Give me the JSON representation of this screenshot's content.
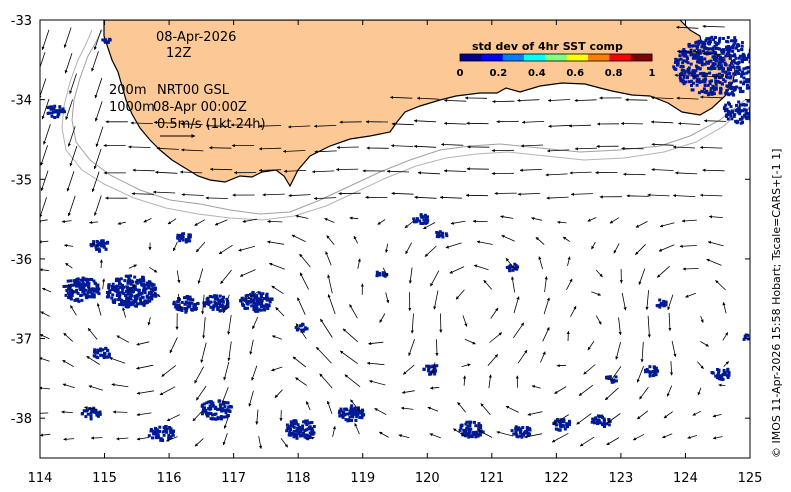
{
  "map": {
    "lon_range": [
      114,
      125
    ],
    "lat_range": [
      -38.5,
      -33
    ],
    "x_ticks": [
      "114",
      "115",
      "116",
      "117",
      "118",
      "119",
      "120",
      "121",
      "122",
      "123",
      "124",
      "125"
    ],
    "y_ticks": [
      "-33",
      "-34",
      "-35",
      "-36",
      "-37",
      "-38"
    ],
    "land_color": "#fcc896",
    "coast_color": "#000000",
    "contour_color": "#a0a0a0",
    "sst_cell_color": "#001a96"
  },
  "annotations": {
    "date": "08-Apr-2026",
    "time": "12Z",
    "depth_200": "200m",
    "depth_1000": "1000m",
    "product": "NRT00 GSL",
    "valid": "08-Apr 00:00Z",
    "scale": "0.5m/s (1kt 24h)"
  },
  "colorbar": {
    "title": "std dev of 4hr SST comp",
    "ticks": [
      "0",
      "0.2",
      "0.4",
      "0.6",
      "0.8",
      "1"
    ],
    "colors": [
      "#00008f",
      "#0000ff",
      "#0080ff",
      "#00ffff",
      "#80ff80",
      "#ffff00",
      "#ff8000",
      "#ff0000",
      "#800000"
    ]
  },
  "side_text": "© IMOS 11-Apr-2026 15:58 Hobart; Tscale=CARS+[-1 1]"
}
